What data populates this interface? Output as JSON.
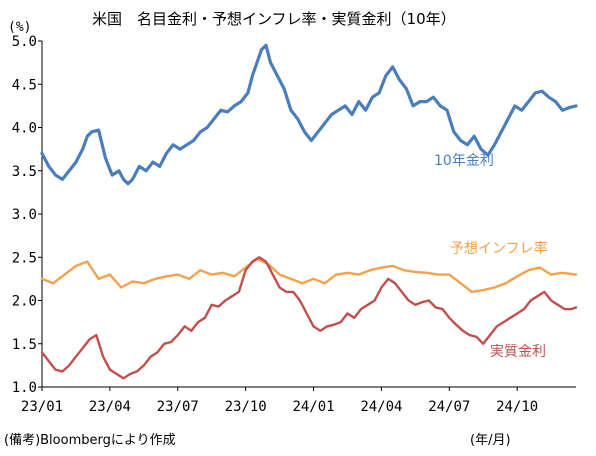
{
  "chart_data": {
    "type": "line",
    "title": "米国　名目金利・予想インフレ率・実質金利（10年）",
    "y_unit": "(%)",
    "xlabel": "(年/月)",
    "source": "(備考)Bloombergにより作成",
    "ylim": [
      1.0,
      5.0
    ],
    "y_ticks": [
      "1.0",
      "1.5",
      "2.0",
      "2.5",
      "3.0",
      "3.5",
      "4.0",
      "4.5",
      "5.0"
    ],
    "x_ticks": [
      "23/01",
      "23/04",
      "23/07",
      "23/10",
      "24/01",
      "24/04",
      "24/07",
      "24/10"
    ],
    "x_tick_pos": [
      0,
      3,
      6,
      9,
      12,
      15,
      18,
      21
    ],
    "x_range": [
      0,
      23.6
    ],
    "grid": false,
    "series": [
      {
        "name": "10年金利",
        "color": "#4a7ebb",
        "x": [
          0,
          0.3,
          0.6,
          0.9,
          1.2,
          1.5,
          1.8,
          2.0,
          2.2,
          2.5,
          2.8,
          3.1,
          3.4,
          3.6,
          3.8,
          4.0,
          4.3,
          4.6,
          4.9,
          5.2,
          5.5,
          5.8,
          6.1,
          6.4,
          6.7,
          7.0,
          7.3,
          7.6,
          7.9,
          8.2,
          8.5,
          8.8,
          9.1,
          9.3,
          9.5,
          9.7,
          9.9,
          10.1,
          10.4,
          10.7,
          11.0,
          11.3,
          11.6,
          11.9,
          12.2,
          12.5,
          12.8,
          13.1,
          13.4,
          13.7,
          14.0,
          14.3,
          14.6,
          14.9,
          15.2,
          15.5,
          15.8,
          16.1,
          16.4,
          16.7,
          17.0,
          17.3,
          17.6,
          17.9,
          18.2,
          18.5,
          18.8,
          19.1,
          19.4,
          19.7,
          20.0,
          20.3,
          20.6,
          20.9,
          21.2,
          21.5,
          21.8,
          22.1,
          22.4,
          22.7,
          23.0,
          23.3,
          23.6
        ],
        "values": [
          3.7,
          3.55,
          3.45,
          3.4,
          3.5,
          3.6,
          3.75,
          3.9,
          3.95,
          3.97,
          3.65,
          3.45,
          3.5,
          3.4,
          3.35,
          3.4,
          3.55,
          3.5,
          3.6,
          3.55,
          3.7,
          3.8,
          3.75,
          3.8,
          3.85,
          3.95,
          4.0,
          4.1,
          4.2,
          4.18,
          4.25,
          4.3,
          4.4,
          4.6,
          4.75,
          4.9,
          4.95,
          4.75,
          4.6,
          4.45,
          4.2,
          4.1,
          3.95,
          3.85,
          3.95,
          4.05,
          4.15,
          4.2,
          4.25,
          4.15,
          4.3,
          4.2,
          4.35,
          4.4,
          4.6,
          4.7,
          4.55,
          4.45,
          4.25,
          4.3,
          4.3,
          4.35,
          4.25,
          4.2,
          3.95,
          3.85,
          3.8,
          3.9,
          3.75,
          3.68,
          3.8,
          3.95,
          4.1,
          4.25,
          4.2,
          4.3,
          4.4,
          4.42,
          4.35,
          4.3,
          4.2,
          4.23,
          4.25
        ]
      },
      {
        "name": "予想インフレ率",
        "color": "#f5a04b",
        "x": [
          0,
          0.5,
          1.0,
          1.5,
          2.0,
          2.5,
          3.0,
          3.5,
          4.0,
          4.5,
          5.0,
          5.5,
          6.0,
          6.5,
          7.0,
          7.5,
          8.0,
          8.5,
          9.0,
          9.5,
          10.0,
          10.5,
          11.0,
          11.5,
          12.0,
          12.5,
          13.0,
          13.5,
          14.0,
          14.5,
          15.0,
          15.5,
          16.0,
          16.5,
          17.0,
          17.5,
          18.0,
          18.5,
          19.0,
          19.5,
          20.0,
          20.5,
          21.0,
          21.5,
          22.0,
          22.5,
          23.0,
          23.6
        ],
        "values": [
          2.25,
          2.2,
          2.3,
          2.4,
          2.45,
          2.25,
          2.3,
          2.15,
          2.22,
          2.2,
          2.25,
          2.28,
          2.3,
          2.25,
          2.35,
          2.3,
          2.32,
          2.28,
          2.38,
          2.48,
          2.42,
          2.3,
          2.25,
          2.2,
          2.25,
          2.2,
          2.3,
          2.32,
          2.3,
          2.35,
          2.38,
          2.4,
          2.35,
          2.33,
          2.32,
          2.3,
          2.3,
          2.2,
          2.1,
          2.12,
          2.15,
          2.2,
          2.28,
          2.35,
          2.38,
          2.3,
          2.32,
          2.3
        ]
      },
      {
        "name": "実質金利",
        "color": "#c0504d",
        "x": [
          0,
          0.3,
          0.6,
          0.9,
          1.2,
          1.5,
          1.8,
          2.1,
          2.4,
          2.7,
          3.0,
          3.3,
          3.6,
          3.9,
          4.2,
          4.5,
          4.8,
          5.1,
          5.4,
          5.7,
          6.0,
          6.3,
          6.6,
          6.9,
          7.2,
          7.5,
          7.8,
          8.1,
          8.4,
          8.7,
          9.0,
          9.3,
          9.6,
          9.9,
          10.2,
          10.5,
          10.8,
          11.1,
          11.4,
          11.7,
          12.0,
          12.3,
          12.6,
          12.9,
          13.2,
          13.5,
          13.8,
          14.1,
          14.4,
          14.7,
          15.0,
          15.3,
          15.6,
          15.9,
          16.2,
          16.5,
          16.8,
          17.1,
          17.4,
          17.7,
          18.0,
          18.3,
          18.6,
          18.9,
          19.2,
          19.5,
          19.8,
          20.1,
          20.4,
          20.7,
          21.0,
          21.3,
          21.6,
          21.9,
          22.2,
          22.5,
          22.8,
          23.1,
          23.4,
          23.6
        ],
        "values": [
          1.4,
          1.3,
          1.2,
          1.18,
          1.25,
          1.35,
          1.45,
          1.55,
          1.6,
          1.35,
          1.2,
          1.15,
          1.1,
          1.15,
          1.18,
          1.25,
          1.35,
          1.4,
          1.5,
          1.52,
          1.6,
          1.7,
          1.65,
          1.75,
          1.8,
          1.95,
          1.93,
          2.0,
          2.05,
          2.1,
          2.35,
          2.45,
          2.5,
          2.45,
          2.3,
          2.15,
          2.1,
          2.1,
          2.0,
          1.85,
          1.7,
          1.65,
          1.7,
          1.72,
          1.75,
          1.85,
          1.8,
          1.9,
          1.95,
          2.0,
          2.15,
          2.25,
          2.2,
          2.1,
          2.0,
          1.95,
          1.98,
          2.0,
          1.92,
          1.9,
          1.8,
          1.72,
          1.65,
          1.6,
          1.58,
          1.5,
          1.6,
          1.7,
          1.75,
          1.8,
          1.85,
          1.9,
          2.0,
          2.05,
          2.1,
          2.0,
          1.95,
          1.9,
          1.9,
          1.92
        ]
      }
    ],
    "series_label_positions": [
      "right-of-peak",
      "upper-right",
      "lower-right"
    ]
  }
}
